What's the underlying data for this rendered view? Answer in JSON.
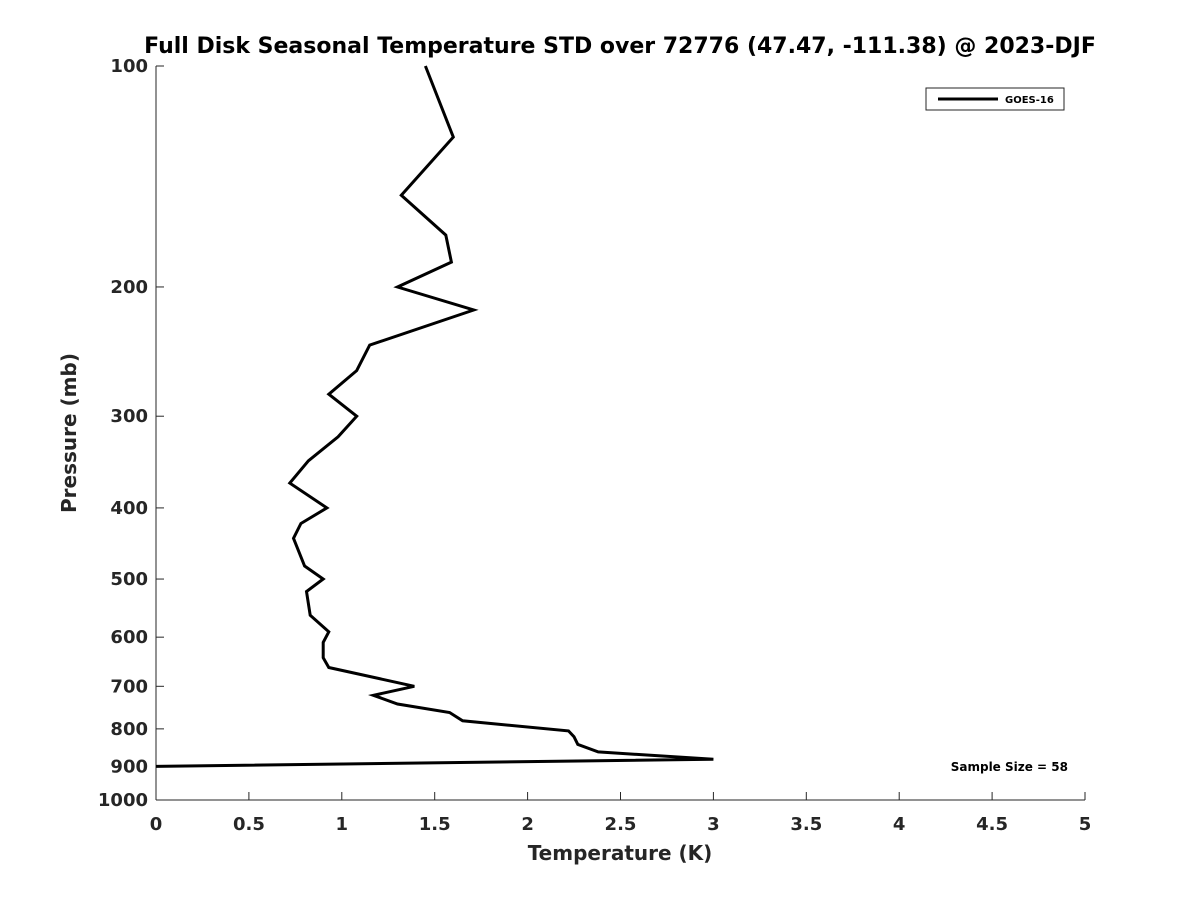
{
  "chart_data": {
    "type": "line",
    "title": "Full Disk Seasonal Temperature STD over 72776 (47.47, -111.38) @ 2023-DJF",
    "xlabel": "Temperature (K)",
    "ylabel": "Pressure (mb)",
    "xlim": [
      0,
      5
    ],
    "ylim": [
      100,
      1000
    ],
    "y_scale": "log",
    "y_reversed": true,
    "x_ticks": [
      0,
      0.5,
      1,
      1.5,
      2,
      2.5,
      3,
      3.5,
      4,
      4.5,
      5
    ],
    "x_tick_labels": [
      "0",
      "0.5",
      "1",
      "1.5",
      "2",
      "2.5",
      "3",
      "3.5",
      "4",
      "4.5",
      "5"
    ],
    "y_ticks": [
      100,
      200,
      300,
      400,
      500,
      600,
      700,
      800,
      900,
      1000
    ],
    "y_tick_labels": [
      "100",
      "200",
      "300",
      "400",
      "500",
      "600",
      "700",
      "800",
      "900",
      "1000"
    ],
    "grid": false,
    "legend_position": "top-right",
    "annotation": "Sample Size = 58",
    "series": [
      {
        "name": "GOES-16",
        "color": "#000000",
        "points": [
          {
            "x": 1.45,
            "y": 100
          },
          {
            "x": 1.6,
            "y": 125
          },
          {
            "x": 1.32,
            "y": 150
          },
          {
            "x": 1.56,
            "y": 170
          },
          {
            "x": 1.59,
            "y": 185
          },
          {
            "x": 1.3,
            "y": 200
          },
          {
            "x": 1.71,
            "y": 215
          },
          {
            "x": 1.15,
            "y": 240
          },
          {
            "x": 1.08,
            "y": 260
          },
          {
            "x": 0.93,
            "y": 280
          },
          {
            "x": 1.08,
            "y": 300
          },
          {
            "x": 0.98,
            "y": 320
          },
          {
            "x": 0.82,
            "y": 345
          },
          {
            "x": 0.72,
            "y": 370
          },
          {
            "x": 0.92,
            "y": 400
          },
          {
            "x": 0.78,
            "y": 420
          },
          {
            "x": 0.74,
            "y": 440
          },
          {
            "x": 0.8,
            "y": 480
          },
          {
            "x": 0.9,
            "y": 500
          },
          {
            "x": 0.81,
            "y": 520
          },
          {
            "x": 0.83,
            "y": 560
          },
          {
            "x": 0.93,
            "y": 590
          },
          {
            "x": 0.9,
            "y": 610
          },
          {
            "x": 0.9,
            "y": 640
          },
          {
            "x": 0.93,
            "y": 660
          },
          {
            "x": 1.39,
            "y": 700
          },
          {
            "x": 1.17,
            "y": 720
          },
          {
            "x": 1.3,
            "y": 740
          },
          {
            "x": 1.58,
            "y": 760
          },
          {
            "x": 1.65,
            "y": 780
          },
          {
            "x": 2.22,
            "y": 805
          },
          {
            "x": 2.25,
            "y": 820
          },
          {
            "x": 2.27,
            "y": 840
          },
          {
            "x": 2.38,
            "y": 860
          },
          {
            "x": 3.0,
            "y": 880
          },
          {
            "x": 0.0,
            "y": 900
          }
        ]
      }
    ]
  }
}
